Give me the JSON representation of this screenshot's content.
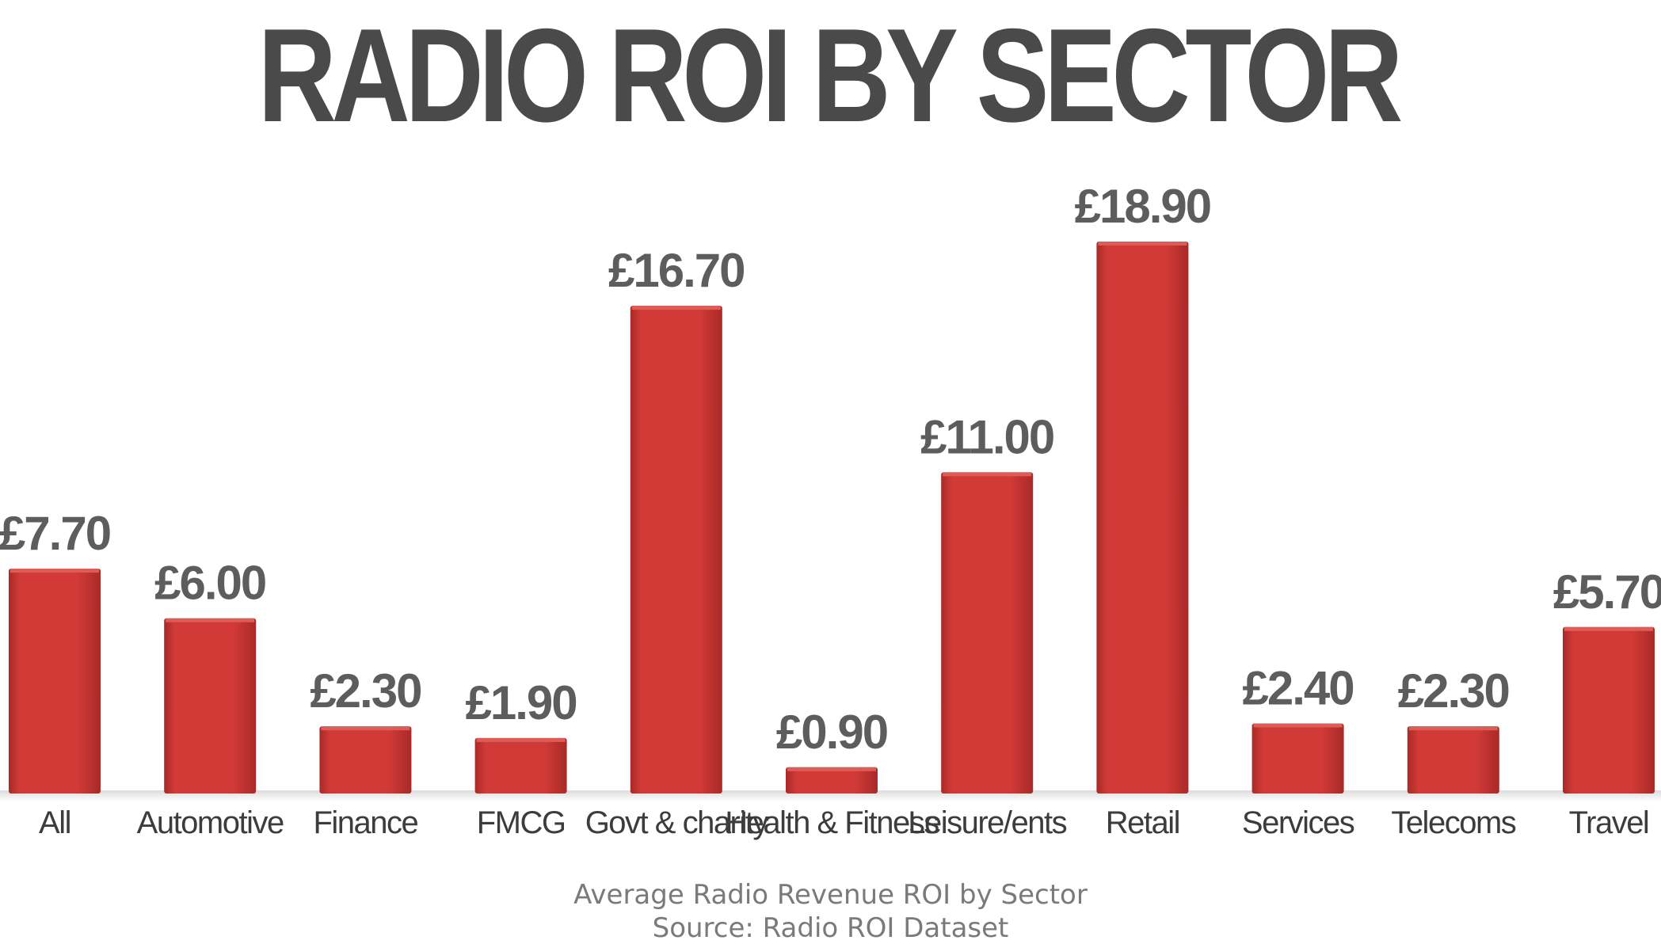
{
  "chart_data": {
    "type": "bar",
    "title": "RADIO ROI BY SECTOR",
    "subtitle": "Average Radio Revenue ROI by Sector",
    "source": "Source: Radio ROI Dataset",
    "categories": [
      "All",
      "Automotive",
      "Finance",
      "FMCG",
      "Govt & charity",
      "Health & Fitness",
      "Leisure/ents",
      "Retail",
      "Services",
      "Telecoms",
      "Travel"
    ],
    "values": [
      7.7,
      6.0,
      2.3,
      1.9,
      16.7,
      0.9,
      11.0,
      18.9,
      2.4,
      2.3,
      5.7
    ],
    "value_labels": [
      "£7.70",
      "£6.00",
      "£2.30",
      "£1.90",
      "£16.70",
      "£0.90",
      "£11.00",
      "£18.90",
      "£2.40",
      "£2.30",
      "£5.70"
    ],
    "xlabel": "",
    "ylabel": "",
    "ylim": [
      0,
      20
    ],
    "grid": false,
    "legend": "none",
    "bar_color": "#d23a37",
    "bar_shade": "#a82a28"
  }
}
